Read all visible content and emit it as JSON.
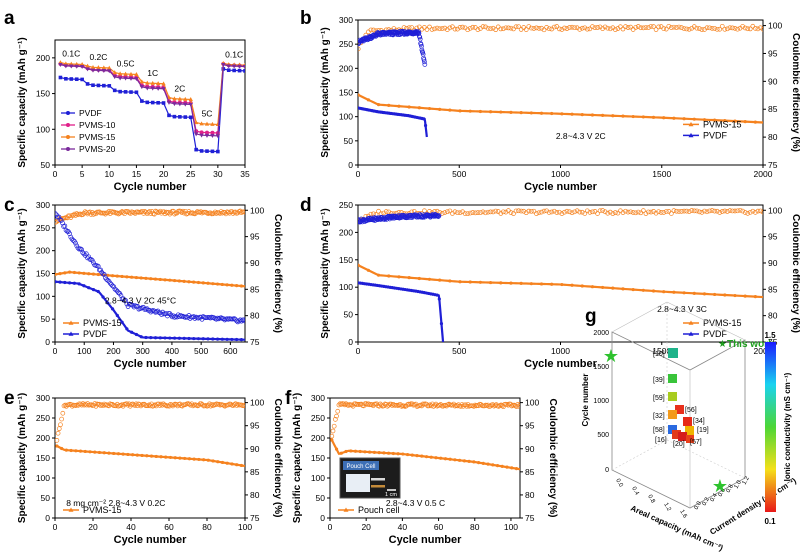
{
  "colors": {
    "pvdf": "#1f1fd6",
    "pvms": "#f5821f",
    "pvms10": "#e0218a",
    "pvms20": "#7b2a9c",
    "star": "#2ec22e",
    "axis": "#000000"
  },
  "panel_g": {
    "letter": "g",
    "legend_label": "★This work",
    "zlabel": "Cycle number",
    "xlabel": "Areal capacity (mAh cm⁻²)",
    "ylabel": "Current density (mA cm⁻²)",
    "colorbar_label": "Ionic conductivity (mS cm⁻¹)",
    "colorbar_max": "1.5",
    "colorbar_min": "0.1",
    "z_ticks": [
      "0",
      "500",
      "1000",
      "1500",
      "2000"
    ],
    "x_ticks": [
      "0.0",
      "0.4",
      "0.8",
      "1.2",
      "1.6"
    ],
    "y_ticks": [
      "0.0",
      "0.2",
      "0.4",
      "0.6",
      "0.8",
      "1.0",
      "1.2"
    ],
    "refs": [
      "[10]",
      "[39]",
      "[59]",
      "[56]",
      "[32]",
      "[34]",
      "[19]",
      "[58]",
      "[16]",
      "[20]",
      "[57]"
    ]
  },
  "chart_data": [
    {
      "panel": "a",
      "type": "line",
      "xlabel": "Cycle number",
      "ylabel": "Specific capacity (mAh g⁻¹)",
      "xlim": [
        0,
        35
      ],
      "ylim": [
        50,
        225
      ],
      "xticks": [
        0,
        5,
        10,
        15,
        20,
        25,
        30,
        35
      ],
      "yticks": [
        50,
        100,
        150,
        200
      ],
      "annotations": [
        "0.1C",
        "0.2C",
        "0.5C",
        "1C",
        "2C",
        "5C",
        "0.1C"
      ],
      "rate_steps": [
        {
          "cycles": [
            1,
            5
          ],
          "rate": "0.1C"
        },
        {
          "cycles": [
            6,
            10
          ],
          "rate": "0.2C"
        },
        {
          "cycles": [
            11,
            15
          ],
          "rate": "0.5C"
        },
        {
          "cycles": [
            16,
            20
          ],
          "rate": "1C"
        },
        {
          "cycles": [
            21,
            25
          ],
          "rate": "2C"
        },
        {
          "cycles": [
            26,
            30
          ],
          "rate": "5C"
        },
        {
          "cycles": [
            31,
            35
          ],
          "rate": "0.1C"
        }
      ],
      "series": [
        {
          "name": "PVDF",
          "color": "#1f1fd6",
          "levels": [
            171,
            162,
            153,
            138,
            118,
            70,
            183
          ]
        },
        {
          "name": "PVMS-10",
          "color": "#e0218a",
          "levels": [
            190,
            184,
            174,
            160,
            138,
            96,
            190
          ]
        },
        {
          "name": "PVMS-15",
          "color": "#f5821f",
          "levels": [
            192,
            187,
            178,
            165,
            143,
            108,
            191
          ]
        },
        {
          "name": "PVMS-20",
          "color": "#7b2a9c",
          "levels": [
            189,
            183,
            172,
            158,
            136,
            92,
            189
          ]
        }
      ],
      "legend_position": "bottom-left"
    },
    {
      "panel": "b",
      "type": "line",
      "xlabel": "Cycle number",
      "ylabel": "Specific capacity (mAh g⁻¹)",
      "y2label": "Coulombic efficiency (%)",
      "xlim": [
        0,
        2000
      ],
      "ylim": [
        0,
        300
      ],
      "y2lim": [
        75,
        101
      ],
      "xticks": [
        0,
        500,
        1000,
        1500,
        2000
      ],
      "yticks": [
        0,
        50,
        100,
        150,
        200,
        250,
        300
      ],
      "y2ticks": [
        75,
        80,
        85,
        90,
        95,
        100
      ],
      "condition": "2.8~4.3 V  2C",
      "series": [
        {
          "name": "PVMS-15",
          "color": "#f5821f",
          "capacity": [
            [
              1,
              145
            ],
            [
              100,
              125
            ],
            [
              500,
              112
            ],
            [
              1000,
              106
            ],
            [
              1500,
              98
            ],
            [
              2000,
              88
            ]
          ],
          "ce": [
            [
              1,
              96
            ],
            [
              50,
              99
            ],
            [
              300,
              99.5
            ],
            [
              2000,
              99.6
            ]
          ]
        },
        {
          "name": "PVDF",
          "color": "#1f1fd6",
          "capacity": [
            [
              1,
              118
            ],
            [
              100,
              110
            ],
            [
              250,
              102
            ],
            [
              330,
              95
            ],
            [
              340,
              58
            ]
          ],
          "ce": [
            [
              1,
              97
            ],
            [
              100,
              98.5
            ],
            [
              300,
              98.8
            ],
            [
              330,
              93
            ]
          ]
        }
      ],
      "legend_position": "bottom-right"
    },
    {
      "panel": "c",
      "type": "line",
      "xlabel": "Cycle number",
      "ylabel": "Specific capacity (mAh g⁻¹)",
      "y2label": "Coulombic efficiency (%)",
      "xlim": [
        0,
        650
      ],
      "ylim": [
        0,
        300
      ],
      "y2lim": [
        75,
        101
      ],
      "xticks": [
        0,
        100,
        200,
        300,
        400,
        500,
        600
      ],
      "yticks": [
        0,
        50,
        100,
        150,
        200,
        250,
        300
      ],
      "y2ticks": [
        75,
        80,
        85,
        90,
        95,
        100
      ],
      "condition": "2.8~4.3 V  2C  45°C",
      "series": [
        {
          "name": "PVMS-15",
          "color": "#f5821f",
          "capacity": [
            [
              1,
              148
            ],
            [
              50,
              153
            ],
            [
              200,
              145
            ],
            [
              400,
              135
            ],
            [
              650,
              122
            ]
          ],
          "ce": [
            [
              1,
              98
            ],
            [
              100,
              99.5
            ],
            [
              650,
              99.6
            ]
          ]
        },
        {
          "name": "PVDF",
          "color": "#1f1fd6",
          "capacity": [
            [
              1,
              132
            ],
            [
              80,
              128
            ],
            [
              150,
              110
            ],
            [
              200,
              70
            ],
            [
              250,
              25
            ],
            [
              300,
              10
            ],
            [
              650,
              5
            ]
          ],
          "ce": [
            [
              1,
              99.5
            ],
            [
              80,
              93
            ],
            [
              150,
              89
            ],
            [
              250,
              82
            ],
            [
              400,
              80
            ],
            [
              650,
              79
            ]
          ]
        }
      ],
      "legend_position": "bottom-left"
    },
    {
      "panel": "d",
      "type": "line",
      "xlabel": "Cycle number",
      "ylabel": "Specific capacity (mAh g⁻¹)",
      "y2label": "Coulombic efficiency (%)",
      "xlim": [
        0,
        2000
      ],
      "ylim": [
        0,
        250
      ],
      "y2lim": [
        75,
        101
      ],
      "xticks": [
        0,
        500,
        1000,
        1500,
        2000
      ],
      "yticks": [
        0,
        50,
        100,
        150,
        200,
        250
      ],
      "y2ticks": [
        75,
        80,
        85,
        90,
        95,
        100
      ],
      "condition": "2.8~4.3 V  3C",
      "series": [
        {
          "name": "PVMS-15",
          "color": "#f5821f",
          "capacity": [
            [
              1,
              140
            ],
            [
              100,
              122
            ],
            [
              500,
              110
            ],
            [
              1000,
              105
            ],
            [
              1500,
              92
            ],
            [
              2000,
              82
            ]
          ],
          "ce": [
            [
              1,
              98
            ],
            [
              100,
              99.6
            ],
            [
              2000,
              99.7
            ]
          ]
        },
        {
          "name": "PVDF",
          "color": "#1f1fd6",
          "capacity": [
            [
              1,
              108
            ],
            [
              100,
              103
            ],
            [
              300,
              92
            ],
            [
              400,
              85
            ],
            [
              420,
              0
            ]
          ],
          "ce": [
            [
              1,
              98
            ],
            [
              200,
              98.8
            ],
            [
              400,
              99
            ]
          ]
        }
      ],
      "legend_position": "bottom-right"
    },
    {
      "panel": "e",
      "type": "scatter",
      "xlabel": "Cycle number",
      "ylabel": "Specific capacity (mAh g⁻¹)",
      "y2label": "Coulombic efficiency (%)",
      "xlim": [
        0,
        100
      ],
      "ylim": [
        0,
        300
      ],
      "y2lim": [
        75,
        101
      ],
      "xticks": [
        0,
        20,
        40,
        60,
        80,
        100
      ],
      "yticks": [
        0,
        50,
        100,
        150,
        200,
        250,
        300
      ],
      "y2ticks": [
        75,
        80,
        85,
        90,
        95,
        100
      ],
      "condition": "8 mg cm⁻²  2.8~4.3 V  0.2C",
      "series": [
        {
          "name": "PVMS-15",
          "color": "#f5821f",
          "capacity": [
            [
              1,
              180
            ],
            [
              5,
              170
            ],
            [
              20,
              165
            ],
            [
              50,
              155
            ],
            [
              80,
              145
            ],
            [
              100,
              130
            ]
          ],
          "ce": [
            [
              1,
              92
            ],
            [
              5,
              99.5
            ],
            [
              100,
              99.5
            ]
          ]
        }
      ],
      "legend_position": "bottom-left"
    },
    {
      "panel": "f",
      "type": "scatter",
      "xlabel": "Cycle number",
      "ylabel": "Specific capacity (mAh g⁻¹)",
      "y2label": "Coulombic efficiency (%)",
      "xlim": [
        0,
        105
      ],
      "ylim": [
        0,
        300
      ],
      "y2lim": [
        75,
        101
      ],
      "xticks": [
        0,
        20,
        40,
        60,
        80,
        100
      ],
      "yticks": [
        0,
        50,
        100,
        150,
        200,
        250,
        300
      ],
      "y2ticks": [
        75,
        80,
        85,
        90,
        95,
        100
      ],
      "condition": "2.8~4.3 V  0.5 C",
      "inset_labels": [
        "Pouch Cell",
        "1 cm"
      ],
      "series": [
        {
          "name": "Pouch cell",
          "color": "#f5821f",
          "capacity": [
            [
              1,
              195
            ],
            [
              5,
              160
            ],
            [
              10,
              168
            ],
            [
              40,
              160
            ],
            [
              80,
              140
            ],
            [
              105,
              122
            ]
          ],
          "ce": [
            [
              1,
              93
            ],
            [
              5,
              99.5
            ],
            [
              105,
              99.4
            ]
          ]
        }
      ],
      "legend_position": "bottom-left"
    }
  ]
}
